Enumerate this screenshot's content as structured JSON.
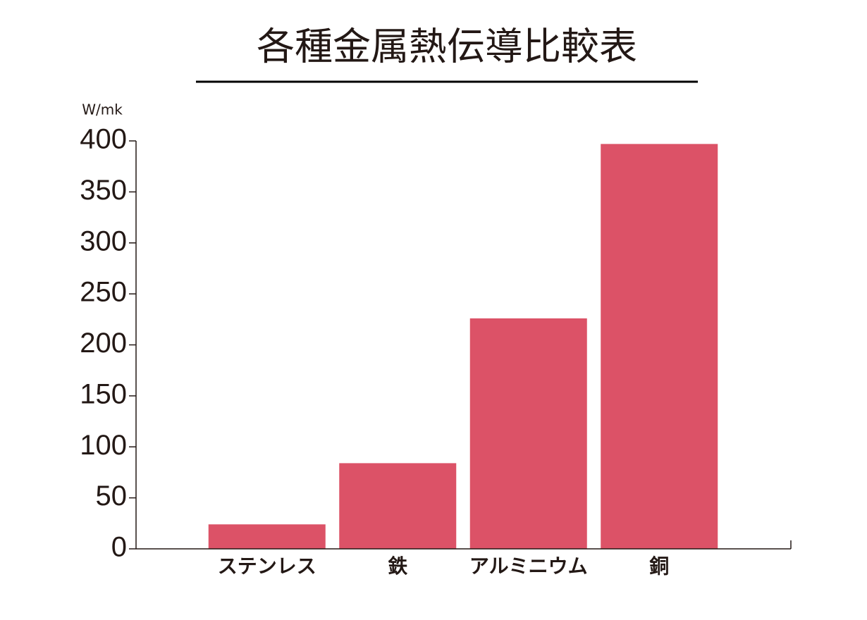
{
  "chart_data": {
    "type": "bar",
    "title": "各種金属熱伝導比較表",
    "ylabel": "W/mk",
    "categories": [
      "ステンレス",
      "鉄",
      "アルミニウム",
      "銅"
    ],
    "values": [
      24,
      84,
      226,
      397
    ],
    "color": "#dc5267",
    "ylim": [
      0,
      400
    ],
    "yticks": [
      0,
      50,
      100,
      150,
      200,
      250,
      300,
      350,
      400
    ],
    "grid": false
  }
}
